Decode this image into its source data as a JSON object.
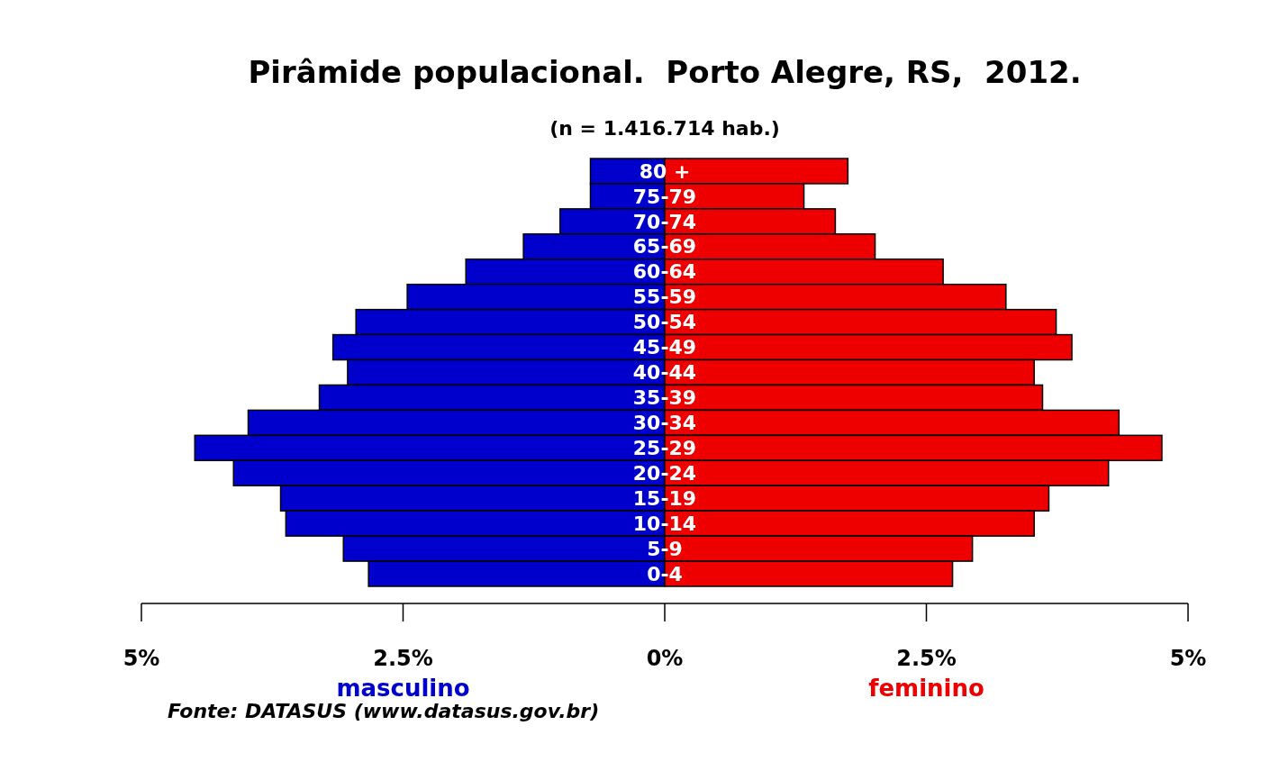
{
  "chart_data": {
    "type": "bar",
    "orientation": "horizontal",
    "stacked": true,
    "title": "Pirâmide populacional.  Porto Alegre, RS,  2012.",
    "subtitle": "(n = 1.416.714 hab.)",
    "categories": [
      "80 +",
      "75-79",
      "70-74",
      "65-69",
      "60-64",
      "55-59",
      "50-54",
      "45-49",
      "40-44",
      "35-39",
      "30-34",
      "25-29",
      "20-24",
      "15-19",
      "10-14",
      "5-9",
      "0-4"
    ],
    "series": [
      {
        "name": "masculino",
        "color": "#0000cd",
        "values": [
          -0.71,
          -0.71,
          -1.0,
          -1.35,
          -1.9,
          -2.46,
          -2.95,
          -3.17,
          -3.03,
          -3.3,
          -3.98,
          -4.49,
          -4.12,
          -3.67,
          -3.62,
          -3.07,
          -2.83
        ]
      },
      {
        "name": "feminino",
        "color": "#ee0000",
        "values": [
          1.75,
          1.33,
          1.63,
          2.01,
          2.66,
          3.26,
          3.74,
          3.89,
          3.53,
          3.61,
          4.34,
          4.75,
          4.24,
          3.67,
          3.53,
          2.94,
          2.75
        ]
      }
    ],
    "xlim": [
      -5,
      5
    ],
    "xticks": [
      {
        "value": -5,
        "label": "5%"
      },
      {
        "value": -2.5,
        "label": "2.5%"
      },
      {
        "value": 0,
        "label": "0%"
      },
      {
        "value": 2.5,
        "label": "2.5%"
      },
      {
        "value": 5,
        "label": "5%"
      }
    ],
    "legend": "bottom",
    "annotations": [
      "Fonte: DATASUS (www.datasus.gov.br)"
    ]
  }
}
